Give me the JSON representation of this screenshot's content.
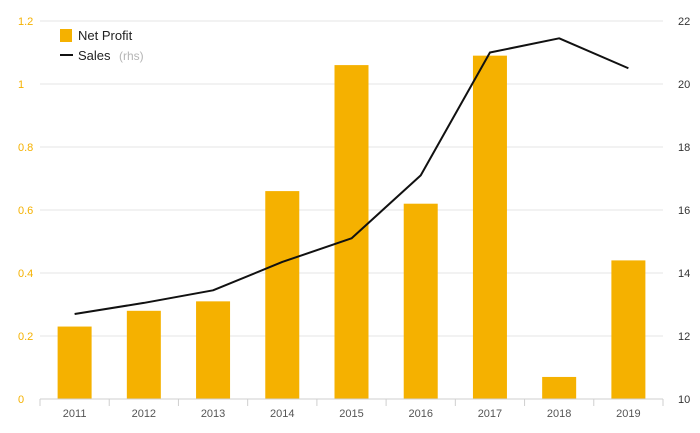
{
  "colors": {
    "bar": "#f5b100",
    "line": "#111111",
    "grid": "#e6e6e6"
  },
  "chart_data": {
    "type": "bar",
    "title": "",
    "xlabel": "",
    "ylabel": "",
    "categories": [
      "2011",
      "2012",
      "2013",
      "2014",
      "2015",
      "2016",
      "2017",
      "2018",
      "2019"
    ],
    "series": [
      {
        "name": "Net Profit",
        "type": "bar",
        "axis": "left",
        "values": [
          0.23,
          0.28,
          0.31,
          0.66,
          1.06,
          0.62,
          1.09,
          0.07,
          0.44
        ]
      },
      {
        "name": "Sales",
        "name_suffix": "(rhs)",
        "type": "line",
        "axis": "right",
        "values": [
          12.7,
          13.05,
          13.45,
          14.35,
          15.1,
          17.1,
          21.0,
          21.45,
          20.5
        ]
      }
    ],
    "ylim_left": [
      0,
      1.2
    ],
    "yticks_left": [
      "0",
      "0.2",
      "0.4",
      "0.6",
      "0.8",
      "1",
      "1.2"
    ],
    "ylim_right": [
      10,
      22
    ],
    "yticks_right": [
      "10",
      "12",
      "14",
      "16",
      "18",
      "20",
      "22"
    ],
    "grid": true,
    "legend_position": "top-left"
  }
}
